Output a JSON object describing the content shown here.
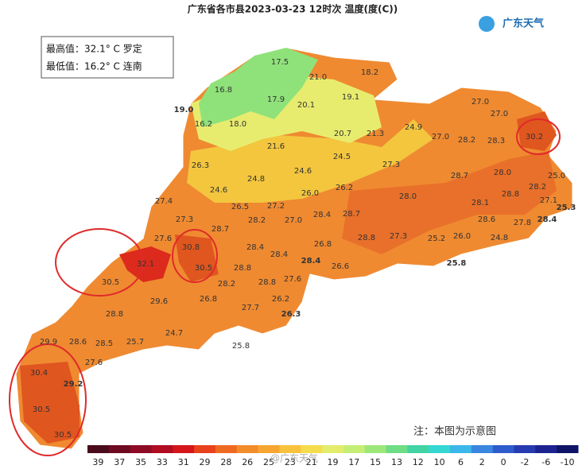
{
  "header": {
    "title": "广东省各市县2023-03-23 12时次 温度(度(C))",
    "logo": "广东天气"
  },
  "summary": {
    "max": "最高值：32.1° C 罗定",
    "min": "最低值：16.2° C 连南"
  },
  "note": "注：本图为示意图",
  "watermark": "@广东天气",
  "legend": {
    "labels": [
      39,
      37,
      35,
      33,
      31,
      29,
      28,
      26,
      25,
      23,
      21,
      19,
      17,
      15,
      13,
      12,
      10,
      6,
      2,
      0,
      -2,
      -6,
      -10
    ],
    "colors": [
      "#4a0b1c",
      "#6d0a22",
      "#8e0b26",
      "#b00c22",
      "#d4161a",
      "#e8421c",
      "#ef6a21",
      "#f38c2a",
      "#f6a531",
      "#f8c23c",
      "#f5dc4c",
      "#e4ec6b",
      "#c4ee74",
      "#9de77a",
      "#6fdc86",
      "#43d3a3",
      "#35d7d2",
      "#3bb7ea",
      "#3a86e0",
      "#2f5ccc",
      "#273bb0",
      "#1c2390",
      "#101466"
    ]
  },
  "stations": [
    "17.5",
    "21.0",
    "18.2",
    "16.8",
    "17.9",
    "20.1",
    "19.1",
    "19.0",
    "16.2",
    "18.0",
    "27.0",
    "27.0",
    "30.2",
    "21.6",
    "20.7",
    "21.3",
    "24.9",
    "27.0",
    "28.2",
    "28.3",
    "26.3",
    "24.8",
    "24.6",
    "24.5",
    "27.3",
    "28.7",
    "28.0",
    "25.0",
    "24.6",
    "26.0",
    "26.2",
    "28.0",
    "28.2",
    "28.1",
    "28.8",
    "27.1",
    "25.3",
    "27.4",
    "26.5",
    "27.2",
    "28.2",
    "27.0",
    "28.4",
    "28.7",
    "28.6",
    "27.8",
    "28.4",
    "27.3",
    "28.7",
    "27.6",
    "26.8",
    "28.8",
    "27.3",
    "25.2",
    "26.0",
    "24.8",
    "30.8",
    "28.4",
    "32.1",
    "30.5",
    "28.4",
    "28.4",
    "26.6",
    "25.8",
    "30.5",
    "28.8",
    "28.2",
    "28.8",
    "27.6",
    "29.6",
    "26.8",
    "27.7",
    "26.2",
    "26.3",
    "28.8",
    "24.7",
    "29.9",
    "28.6",
    "28.5",
    "25.7",
    "25.8",
    "27.6",
    "30.4",
    "29.2",
    "30.5",
    "30.5"
  ]
}
